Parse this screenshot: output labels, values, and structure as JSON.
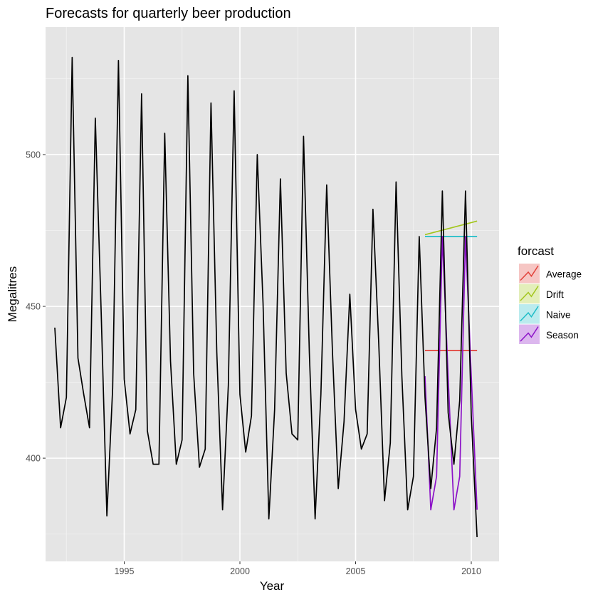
{
  "chart_data": {
    "type": "line",
    "title": "Forecasts for quarterly beer production",
    "xlabel": "Year",
    "ylabel": "Megalitres",
    "xlim": [
      1991.6,
      2011.2
    ],
    "ylim": [
      366,
      542
    ],
    "x_ticks": [
      {
        "value": 1995,
        "label": "1995"
      },
      {
        "value": 2000,
        "label": "2000"
      },
      {
        "value": 2005,
        "label": "2005"
      },
      {
        "value": 2010,
        "label": "2010"
      }
    ],
    "y_ticks": [
      {
        "value": 400,
        "label": "400"
      },
      {
        "value": 450,
        "label": "450"
      },
      {
        "value": 500,
        "label": "500"
      }
    ],
    "grid": true,
    "legend": {
      "title": "forcast",
      "position": "right"
    },
    "history": {
      "color": "#000000",
      "start_year": 1992.0,
      "step": 0.25,
      "values": [
        443,
        410,
        420,
        532,
        433,
        421,
        410,
        512,
        449,
        381,
        423,
        531,
        426,
        408,
        416,
        520,
        409,
        398,
        398,
        507,
        432,
        398,
        406,
        526,
        428,
        397,
        403,
        517,
        435,
        383,
        424,
        521,
        421,
        402,
        414,
        500,
        451,
        380,
        416,
        492,
        428,
        408,
        406,
        506,
        435,
        380,
        421,
        490,
        435,
        390,
        412,
        454,
        416,
        403,
        408,
        482,
        438,
        386,
        405,
        491,
        427,
        383,
        394,
        473,
        420,
        390,
        410,
        488,
        415,
        398,
        419,
        488,
        414,
        374
      ]
    },
    "series": [
      {
        "name": "Average",
        "color": "#E2413A",
        "x": [
          2008.0,
          2008.25,
          2008.5,
          2008.75,
          2009.0,
          2009.25,
          2009.5,
          2009.75,
          2010.0,
          2010.25
        ],
        "values": [
          435.5,
          435.5,
          435.5,
          435.5,
          435.5,
          435.5,
          435.5,
          435.5,
          435.5,
          435.5
        ]
      },
      {
        "name": "Drift",
        "color": "#A3C61C",
        "x": [
          2008.0,
          2008.25,
          2008.5,
          2008.75,
          2009.0,
          2009.25,
          2009.5,
          2009.75,
          2010.0,
          2010.25
        ],
        "values": [
          473.6,
          474.1,
          474.6,
          475.1,
          475.6,
          476.1,
          476.6,
          477.1,
          477.6,
          478.1
        ]
      },
      {
        "name": "Naive",
        "color": "#1EBDC7",
        "x": [
          2008.0,
          2008.25,
          2008.5,
          2008.75,
          2009.0,
          2009.25,
          2009.5,
          2009.75,
          2010.0,
          2010.25
        ],
        "values": [
          473,
          473,
          473,
          473,
          473,
          473,
          473,
          473,
          473,
          473
        ]
      },
      {
        "name": "Season",
        "color": "#8C12C8",
        "x": [
          2008.0,
          2008.25,
          2008.5,
          2008.75,
          2009.0,
          2009.25,
          2009.5,
          2009.75,
          2010.0,
          2010.25
        ],
        "values": [
          427,
          383,
          394,
          473,
          427,
          383,
          394,
          473,
          427,
          383
        ]
      }
    ]
  }
}
